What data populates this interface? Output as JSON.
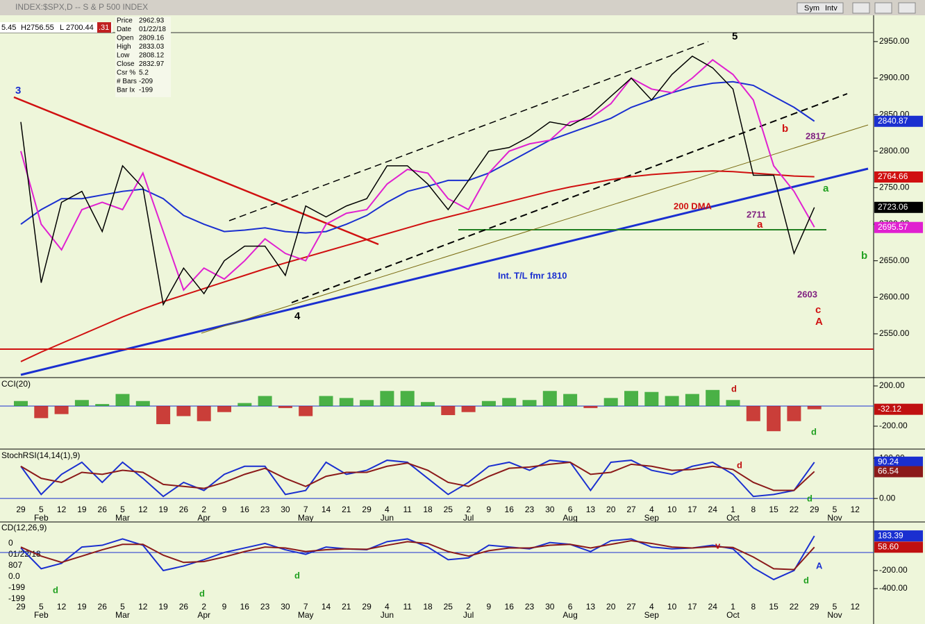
{
  "window": {
    "title": "INDEX:$SPX,D -- S & P 500 INDEX",
    "buttons": [
      "Sym",
      "Intv"
    ],
    "quote": [
      "5.45",
      "H",
      "2756.55",
      "L",
      "2700.44",
      ".31"
    ]
  },
  "info": [
    [
      "Price",
      "2962.93"
    ],
    [
      "Date",
      "01/22/18"
    ],
    [
      "Open",
      "2809.16"
    ],
    [
      "High",
      "2833.03"
    ],
    [
      "Low",
      "2808.12"
    ],
    [
      "Close",
      "2832.97"
    ],
    [
      "Csr %",
      "5.2"
    ],
    [
      "# Bars",
      "-209"
    ],
    [
      "Bar Ix",
      "-199"
    ]
  ],
  "macd_info": [
    "0",
    "01/22/18",
    "807",
    "0.0",
    "-199",
    "-199"
  ],
  "chart_data": [
    {
      "type": "line",
      "categories": [
        "29",
        "5",
        "12",
        "19",
        "26",
        "5",
        "12",
        "19",
        "26",
        "2",
        "9",
        "16",
        "23",
        "30",
        "7",
        "14",
        "21",
        "29",
        "4",
        "11",
        "18",
        "25",
        "2",
        "9",
        "16",
        "23",
        "30",
        "6",
        "13",
        "20",
        "27",
        "4",
        "10",
        "17",
        "24",
        "1",
        "8",
        "15",
        "22",
        "29",
        "5",
        "12"
      ],
      "month_labels": [
        null,
        "Feb",
        null,
        null,
        null,
        "Mar",
        null,
        null,
        null,
        "Apr",
        null,
        null,
        null,
        null,
        "May",
        null,
        null,
        null,
        "Jun",
        null,
        null,
        null,
        "Jul",
        null,
        null,
        null,
        null,
        "Aug",
        null,
        null,
        null,
        "Sep",
        null,
        null,
        null,
        "Oct",
        null,
        null,
        null,
        null,
        "Nov",
        null
      ],
      "series": [
        {
          "color": "#d01010",
          "values": [
            2512,
            2525,
            2537,
            2549,
            2561,
            2573,
            2584,
            2594,
            2603,
            2612,
            2621,
            2630,
            2639,
            2647,
            2655,
            2663,
            2671,
            2679,
            2687,
            2695,
            2703,
            2710,
            2717,
            2724,
            2731,
            2738,
            2745,
            2751,
            2756,
            2761,
            2765,
            2768,
            2770,
            2772,
            2773,
            2772,
            2770,
            2768,
            2766,
            2765,
            null,
            null
          ]
        },
        {
          "color": "#1a2fd0",
          "values": [
            2700,
            2720,
            2735,
            2735,
            2740,
            2745,
            2748,
            2735,
            2712,
            2700,
            2690,
            2692,
            2695,
            2690,
            2688,
            2690,
            2700,
            2712,
            2730,
            2745,
            2752,
            2760,
            2760,
            2770,
            2785,
            2800,
            2815,
            2825,
            2835,
            2845,
            2860,
            2870,
            2880,
            2888,
            2893,
            2895,
            2890,
            2875,
            2860,
            2841,
            null,
            null
          ]
        },
        {
          "color": "#e020d0",
          "values": [
            2800,
            2700,
            2665,
            2720,
            2730,
            2720,
            2770,
            2690,
            2610,
            2640,
            2625,
            2650,
            2680,
            2660,
            2650,
            2700,
            2715,
            2720,
            2755,
            2775,
            2770,
            2735,
            2720,
            2770,
            2800,
            2810,
            2815,
            2840,
            2845,
            2865,
            2900,
            2885,
            2880,
            2900,
            2925,
            2905,
            2870,
            2780,
            2745,
            2696,
            null,
            null
          ]
        },
        {
          "color": "#000000",
          "values": [
            2840,
            2620,
            2730,
            2745,
            2690,
            2780,
            2750,
            2590,
            2640,
            2605,
            2650,
            2670,
            2670,
            2630,
            2725,
            2710,
            2725,
            2735,
            2780,
            2780,
            2755,
            2720,
            2760,
            2800,
            2805,
            2820,
            2840,
            2835,
            2850,
            2875,
            2900,
            2870,
            2905,
            2930,
            2914,
            2885,
            2767,
            2767,
            2660,
            2723,
            null,
            null
          ]
        }
      ],
      "ylim": [
        2492,
        2986
      ],
      "yticks": [
        {
          "value": 2550,
          "label": "2550.00"
        },
        {
          "value": 2600,
          "label": "2600.00"
        },
        {
          "value": 2650,
          "label": "2650.00"
        },
        {
          "value": 2700,
          "label": "2700.00"
        },
        {
          "value": 2750,
          "label": "2750.00"
        },
        {
          "value": 2800,
          "label": "2800.00"
        },
        {
          "value": 2850,
          "label": "2850.00"
        },
        {
          "value": 2900,
          "label": "2900.00"
        },
        {
          "value": 2950,
          "label": "2950.00"
        }
      ],
      "badges": [
        {
          "value": 2840.87,
          "label": "2840.87",
          "color": "#1a2fd0"
        },
        {
          "value": 2764.66,
          "label": "2764.66",
          "color": "#d01010"
        },
        {
          "value": 2723.06,
          "label": "2723.06",
          "color": "#000000"
        },
        {
          "value": 2695.57,
          "label": "2695.57",
          "color": "#e020d0"
        }
      ],
      "annotations": [
        {
          "text": "3",
          "color": "#1a2fd0"
        },
        {
          "text": "4",
          "color": "#000"
        },
        {
          "text": "5",
          "color": "#000"
        },
        {
          "text": "b",
          "color": "#d01010"
        },
        {
          "text": "2817",
          "color": "#802080"
        },
        {
          "text": "200 DMA",
          "color": "#d01010"
        },
        {
          "text": "2711",
          "color": "#802080"
        },
        {
          "text": "a",
          "color": "#d01010"
        },
        {
          "text": "a",
          "color": "#20a020"
        },
        {
          "text": "2603",
          "color": "#802080"
        },
        {
          "text": "c",
          "color": "#d01010"
        },
        {
          "text": "A",
          "color": "#d01010"
        },
        {
          "text": "b",
          "color": "#20a020"
        },
        {
          "text": "Int. T/L fmr 1810",
          "color": "#1a2fd0"
        }
      ]
    },
    {
      "type": "bar",
      "label": "CCI(20)",
      "pos_color": "#20a020",
      "neg_color": "#c01010",
      "values": [
        50,
        -120,
        -80,
        60,
        20,
        120,
        50,
        -180,
        -100,
        -150,
        -60,
        30,
        100,
        -20,
        -100,
        100,
        80,
        60,
        150,
        150,
        40,
        -90,
        -60,
        50,
        80,
        60,
        150,
        120,
        -20,
        80,
        150,
        140,
        100,
        120,
        160,
        60,
        -150,
        -250,
        -150,
        -32,
        null,
        null
      ],
      "ylim": [
        -414,
        276
      ],
      "yticks": [
        {
          "value": 200,
          "label": "200.00"
        },
        {
          "value": -200,
          "label": "-200.00"
        }
      ],
      "badges": [
        {
          "value": -32.12,
          "label": "-32.12",
          "color": "#c01010"
        }
      ],
      "annotations": [
        {
          "text": "d",
          "color": "#c01010"
        },
        {
          "text": "d",
          "color": "#20a020"
        }
      ]
    },
    {
      "type": "line",
      "label": "StochRSI(14,14(1),9)",
      "series": [
        {
          "color": "#1a2fd0",
          "values": [
            80,
            10,
            60,
            90,
            40,
            90,
            50,
            5,
            40,
            20,
            60,
            80,
            80,
            10,
            20,
            90,
            60,
            70,
            95,
            90,
            50,
            10,
            40,
            80,
            90,
            70,
            95,
            90,
            20,
            90,
            95,
            70,
            60,
            80,
            90,
            60,
            5,
            10,
            20,
            90,
            null,
            null
          ]
        },
        {
          "color": "#8b1a1a",
          "values": [
            80,
            50,
            40,
            65,
            60,
            70,
            65,
            35,
            30,
            25,
            40,
            60,
            75,
            50,
            30,
            55,
            65,
            65,
            80,
            88,
            70,
            40,
            30,
            55,
            75,
            78,
            85,
            90,
            60,
            65,
            85,
            80,
            70,
            72,
            80,
            72,
            40,
            20,
            20,
            67,
            null,
            null
          ]
        }
      ],
      "ylim": [
        -17,
        121
      ],
      "yticks": [
        {
          "value": 0,
          "label": "0.00"
        },
        {
          "value": 100,
          "label": "100.00"
        }
      ],
      "badges": [
        {
          "value": 90.24,
          "label": "90.24",
          "color": "#1a2fd0"
        },
        {
          "value": 66.54,
          "label": "66.54",
          "color": "#8b1a1a"
        }
      ],
      "annotations": [
        {
          "text": "d",
          "color": "#c01010"
        },
        {
          "text": "d",
          "color": "#20a020"
        }
      ]
    },
    {
      "type": "line",
      "label": "CD(12,26,9)",
      "series": [
        {
          "color": "#1a2fd0",
          "values": [
            50,
            -180,
            -120,
            60,
            80,
            150,
            80,
            -200,
            -150,
            -80,
            0,
            50,
            100,
            30,
            -20,
            60,
            40,
            30,
            120,
            150,
            60,
            -80,
            -60,
            80,
            60,
            40,
            110,
            90,
            10,
            130,
            150,
            60,
            40,
            50,
            80,
            40,
            -170,
            -300,
            -200,
            183,
            null,
            null
          ]
        },
        {
          "color": "#8b1a1a",
          "values": [
            60,
            -40,
            -110,
            -40,
            30,
            90,
            90,
            -30,
            -110,
            -100,
            -50,
            10,
            60,
            50,
            10,
            30,
            40,
            35,
            80,
            120,
            100,
            10,
            -40,
            20,
            50,
            50,
            80,
            90,
            50,
            90,
            130,
            100,
            60,
            50,
            65,
            55,
            -50,
            -180,
            -190,
            59,
            null,
            null
          ]
        }
      ],
      "ylim": [
        -554,
        338
      ],
      "yticks": [
        {
          "value": -200,
          "label": "-200.00"
        },
        {
          "value": -400,
          "label": "-400.00"
        }
      ],
      "badges": [
        {
          "value": 183.39,
          "label": "183.39",
          "color": "#1a2fd0"
        },
        {
          "value": 58.6,
          "label": "58.60",
          "color": "#c01010"
        }
      ],
      "annotations": [
        {
          "text": "d",
          "color": "#20a020"
        },
        {
          "text": "d",
          "color": "#20a020"
        },
        {
          "text": "d",
          "color": "#20a020"
        },
        {
          "text": "d",
          "color": "#20a020"
        },
        {
          "text": "v",
          "color": "#c01010"
        },
        {
          "text": "A",
          "color": "#1a2fd0"
        }
      ]
    }
  ]
}
